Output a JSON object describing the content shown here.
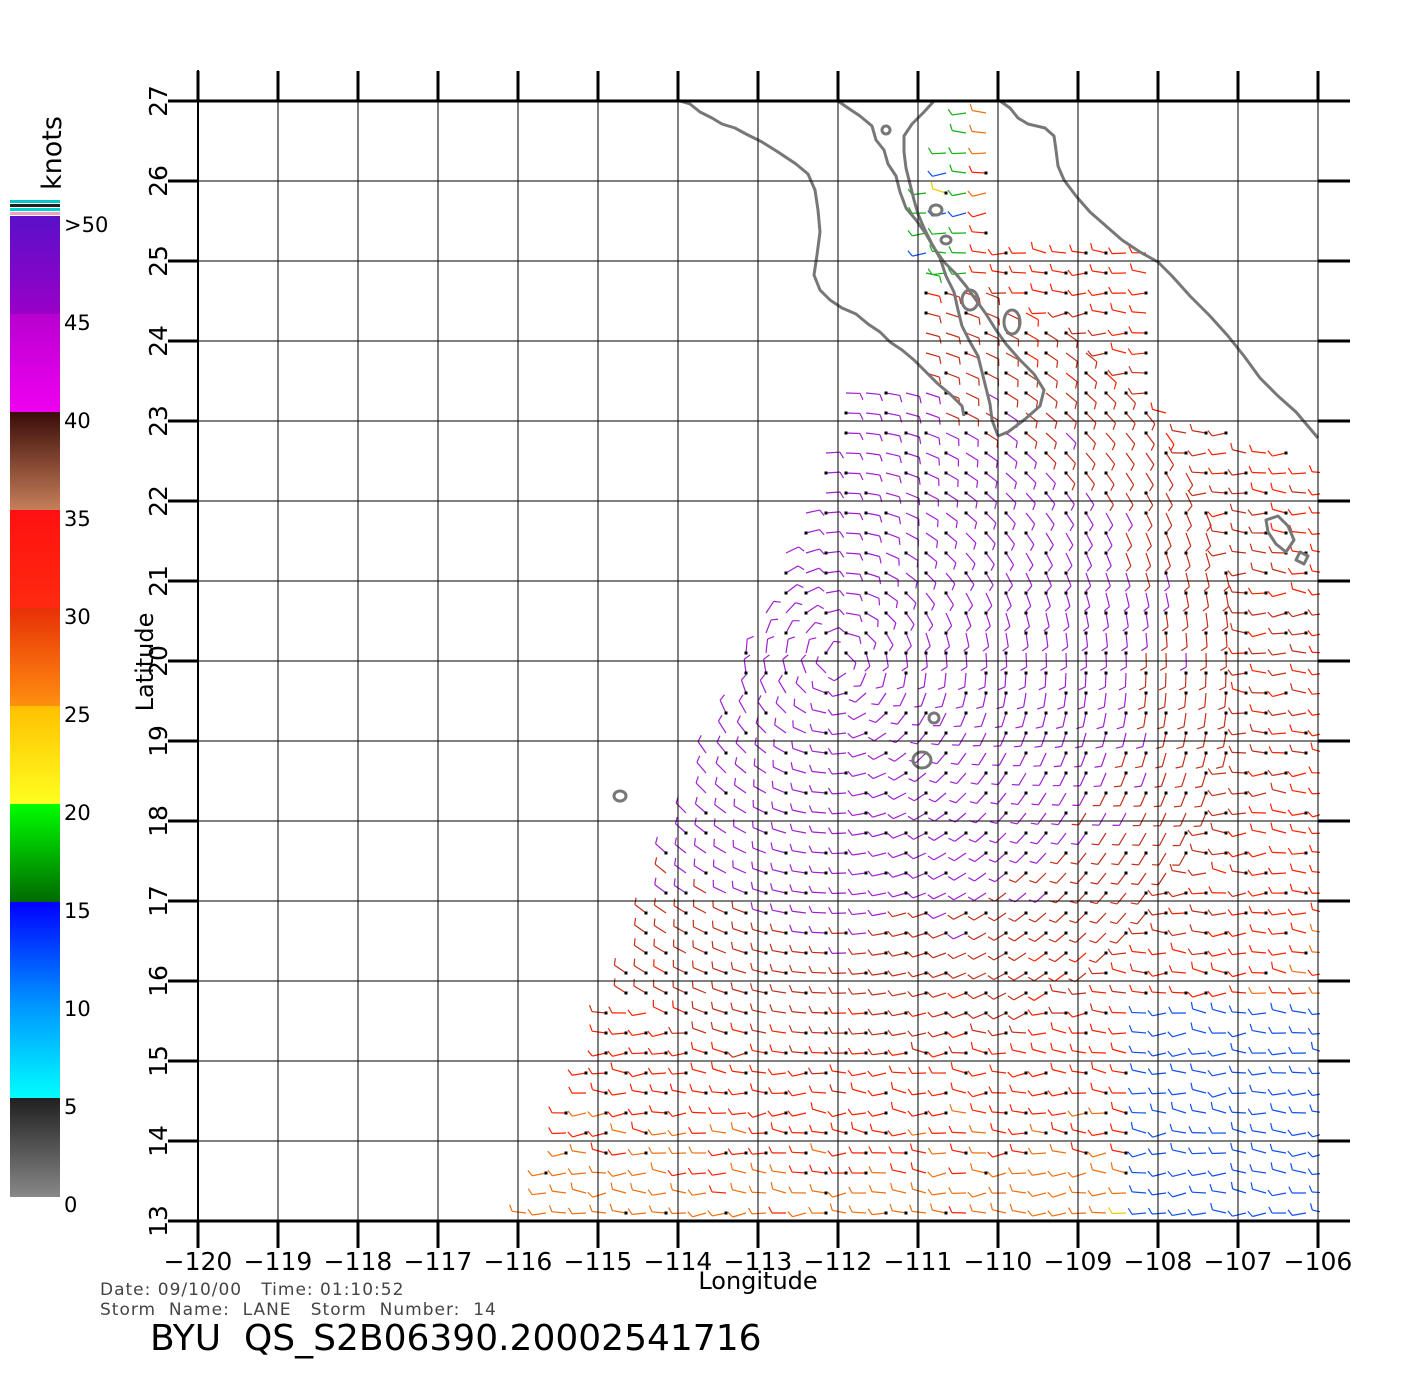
{
  "map": {
    "type": "wind-vector-map",
    "xlabel": "Longitude",
    "ylabel": "Latitude",
    "lon_range": [
      -120,
      -105.5
    ],
    "lat_range": [
      13,
      27
    ],
    "x_ticks": [
      -120,
      -119,
      -118,
      -117,
      -116,
      -115,
      -114,
      -113,
      -112,
      -111,
      -110,
      -109,
      -108,
      -107,
      -106
    ],
    "x_tick_labels": [
      "−120",
      "−119",
      "−118",
      "−117",
      "−116",
      "−115",
      "−114",
      "−113",
      "−112",
      "−111",
      "−110",
      "−109",
      "−108",
      "−107",
      "−106"
    ],
    "y_ticks": [
      13,
      14,
      15,
      16,
      17,
      18,
      19,
      20,
      21,
      22,
      23,
      24,
      25,
      26,
      27
    ],
    "y_tick_labels": [
      "13",
      "14",
      "15",
      "16",
      "17",
      "18",
      "19",
      "20",
      "21",
      "22",
      "23",
      "24",
      "25",
      "26",
      "27"
    ],
    "grid": true,
    "storm_center_approx": {
      "lon": -112,
      "lat": 20
    }
  },
  "colorbar": {
    "unit": "knots",
    "labels": [
      ">50",
      "45",
      "40",
      "35",
      "30",
      "25",
      "20",
      "15",
      "10",
      "5",
      "0"
    ],
    "bands": [
      {
        "from": 45,
        "to": 50,
        "colors": [
          "#5a10c8",
          "#9a00c8"
        ]
      },
      {
        "from": 40,
        "to": 45,
        "colors": [
          "#b800d0",
          "#f000f0"
        ]
      },
      {
        "from": 35,
        "to": 40,
        "colors": [
          "#3a0c08",
          "#c8805a"
        ]
      },
      {
        "from": 30,
        "to": 35,
        "colors": [
          "#ff1010",
          "#ff2a10"
        ]
      },
      {
        "from": 25,
        "to": 30,
        "colors": [
          "#e83008",
          "#ff9010"
        ]
      },
      {
        "from": 20,
        "to": 25,
        "colors": [
          "#ffc000",
          "#ffff20"
        ]
      },
      {
        "from": 15,
        "to": 20,
        "colors": [
          "#00ff00",
          "#006800"
        ]
      },
      {
        "from": 10,
        "to": 15,
        "colors": [
          "#0000ff",
          "#0090ff"
        ]
      },
      {
        "from": 5,
        "to": 10,
        "colors": [
          "#0090ff",
          "#00ffff"
        ]
      },
      {
        "from": 0,
        "to": 5,
        "colors": [
          "#202020",
          "#888888"
        ]
      }
    ]
  },
  "colors": {
    "coast": "#777777",
    "grid": "#000000",
    "rain_flag": "#000000"
  },
  "info": {
    "date_line": "Date: 09/10/00   Time: 01:10:52",
    "storm_line": "Storm  Name:  LANE   Storm  Number:  14",
    "file_id": "BYU  QS_S2B06390.20002541716"
  }
}
